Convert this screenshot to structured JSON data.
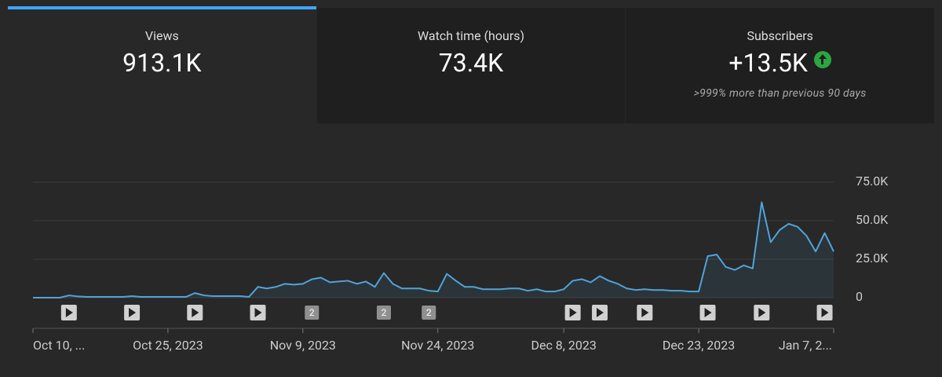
{
  "cards": [
    {
      "label": "Views",
      "value": "913.1K"
    },
    {
      "label": "Watch time (hours)",
      "value": "73.4K"
    },
    {
      "label": "Subscribers",
      "value": "+13.5K",
      "note": ">999% more than previous 90 days"
    }
  ],
  "chart_data": {
    "type": "area",
    "color": "#4fa3d9",
    "x": [
      0,
      1,
      2,
      3,
      4,
      5,
      6,
      7,
      8,
      9,
      10,
      11,
      12,
      13,
      14,
      15,
      16,
      17,
      18,
      19,
      20,
      21,
      22,
      23,
      24,
      25,
      26,
      27,
      28,
      29,
      30,
      31,
      32,
      33,
      34,
      35,
      36,
      37,
      38,
      39,
      40,
      41,
      42,
      43,
      44,
      45,
      46,
      47,
      48,
      49,
      50,
      51,
      52,
      53,
      54,
      55,
      56,
      57,
      58,
      59,
      60,
      61,
      62,
      63,
      64,
      65,
      66,
      67,
      68,
      69,
      70,
      71,
      72,
      73,
      74,
      75,
      76,
      77,
      78,
      79,
      80,
      81,
      82,
      83,
      84,
      85,
      86,
      87,
      88,
      89
    ],
    "values": [
      0,
      0,
      0,
      0,
      1500,
      800,
      500,
      500,
      500,
      500,
      500,
      1000,
      500,
      500,
      500,
      500,
      500,
      500,
      3000,
      1500,
      1000,
      1000,
      1000,
      1000,
      500,
      7000,
      6000,
      7000,
      9000,
      8500,
      9000,
      12000,
      13000,
      10000,
      10500,
      11000,
      9000,
      10500,
      7000,
      16000,
      9000,
      6000,
      6000,
      6000,
      4500,
      4000,
      15500,
      11000,
      7000,
      7000,
      5500,
      5500,
      5500,
      6000,
      6000,
      4500,
      5500,
      4000,
      4000,
      5500,
      11000,
      12000,
      10000,
      14000,
      11000,
      9000,
      6000,
      5000,
      5500,
      5000,
      5000,
      4500,
      4500,
      4000,
      4000,
      27000,
      28000,
      20000,
      18000,
      21000,
      19000,
      62000,
      36000,
      44000,
      48000,
      46000,
      40000,
      30000,
      42000,
      30000
    ],
    "xlim": [
      0,
      89
    ],
    "xticks": [
      {
        "value": 0,
        "label": "Oct 10, ..."
      },
      {
        "value": 15,
        "label": "Oct 25, 2023"
      },
      {
        "value": 30,
        "label": "Nov 9, 2023"
      },
      {
        "value": 45,
        "label": "Nov 24, 2023"
      },
      {
        "value": 59,
        "label": "Dec 8, 2023"
      },
      {
        "value": 74,
        "label": "Dec 23, 2023"
      },
      {
        "value": 89,
        "label": "Jan 7, 2..."
      }
    ],
    "ylim": [
      0,
      75000
    ],
    "yticks": [
      0,
      {
        "value": 25000,
        "label": "25.0K"
      },
      {
        "value": 50000,
        "label": "50.0K"
      },
      {
        "value": 75000,
        "label": "75.0K"
      }
    ],
    "grid": true,
    "markers": [
      {
        "x": 4
      },
      {
        "x": 11
      },
      {
        "x": 18
      },
      {
        "x": 25
      },
      {
        "x": 31,
        "label": "2"
      },
      {
        "x": 39,
        "label": "2"
      },
      {
        "x": 44,
        "label": "2"
      },
      {
        "x": 60
      },
      {
        "x": 63
      },
      {
        "x": 68
      },
      {
        "x": 75
      },
      {
        "x": 81
      },
      {
        "x": 88
      }
    ]
  }
}
